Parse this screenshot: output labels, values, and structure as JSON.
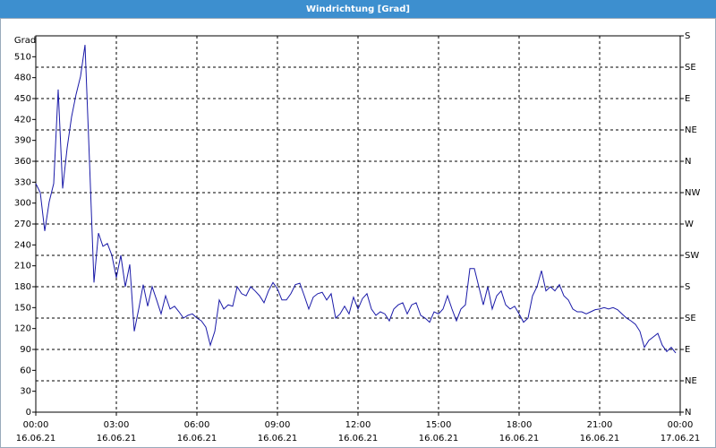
{
  "chart_data": {
    "type": "line",
    "title": "Windrichtung [Grad]",
    "ylabel": "Grad",
    "x": [
      0,
      10,
      20,
      30,
      40,
      50,
      60,
      70,
      80,
      90,
      100,
      110,
      120,
      130,
      140,
      150,
      160,
      170,
      180,
      190,
      200,
      210,
      220,
      230,
      240,
      250,
      260,
      270,
      280,
      290,
      300,
      310,
      320,
      330,
      340,
      350,
      360,
      370,
      380,
      390,
      400,
      410,
      420,
      430,
      440,
      450,
      460,
      470,
      480,
      490,
      500,
      510,
      520,
      530,
      540,
      550,
      560,
      570,
      580,
      590,
      600,
      610,
      620,
      630,
      640,
      650,
      660,
      670,
      680,
      690,
      700,
      710,
      720,
      730,
      740,
      750,
      760,
      770,
      780,
      790,
      800,
      810,
      820,
      830,
      840,
      850,
      860,
      870,
      880,
      890,
      900,
      910,
      920,
      930,
      940,
      950,
      960,
      970,
      980,
      990,
      1000,
      1010,
      1020,
      1030,
      1040,
      1050,
      1060,
      1070,
      1080,
      1090,
      1100,
      1110,
      1120,
      1130,
      1140,
      1150,
      1160,
      1170,
      1180,
      1190,
      1200,
      1210,
      1220,
      1230,
      1240,
      1250,
      1260,
      1270,
      1280,
      1290,
      1300,
      1310,
      1320,
      1330,
      1340,
      1350,
      1360,
      1370,
      1380,
      1390,
      1400,
      1410,
      1420,
      1430
    ],
    "series": [
      {
        "name": "Windrichtung",
        "color": "#1a1aa8",
        "values": [
          328,
          315,
          260,
          302,
          328,
          463,
          321,
          379,
          424,
          456,
          482,
          527,
          360,
          186,
          257,
          238,
          242,
          225,
          193,
          225,
          180,
          212,
          116,
          148,
          183,
          152,
          180,
          161,
          141,
          167,
          148,
          152,
          144,
          135,
          139,
          141,
          135,
          131,
          122,
          96,
          116,
          161,
          148,
          154,
          152,
          180,
          170,
          167,
          180,
          174,
          167,
          157,
          174,
          186,
          177,
          161,
          161,
          170,
          183,
          185,
          167,
          148,
          165,
          170,
          172,
          161,
          170,
          135,
          141,
          152,
          141,
          165,
          148,
          163,
          170,
          148,
          139,
          144,
          141,
          131,
          148,
          154,
          157,
          141,
          154,
          157,
          139,
          135,
          129,
          144,
          141,
          148,
          167,
          148,
          131,
          148,
          154,
          206,
          206,
          180,
          154,
          180,
          148,
          167,
          174,
          154,
          148,
          152,
          141,
          129,
          135,
          167,
          180,
          203,
          174,
          180,
          174,
          183,
          167,
          161,
          148,
          144,
          144,
          141,
          144,
          147,
          148,
          150,
          148,
          150,
          147,
          141,
          135,
          131,
          126,
          116,
          93,
          103,
          108,
          113,
          96,
          87,
          93,
          85
        ]
      }
    ],
    "xlim": [
      0,
      1440
    ],
    "xticks": [
      {
        "value": 0,
        "label": "00:00"
      },
      {
        "value": 180,
        "label": "03:00"
      },
      {
        "value": 360,
        "label": "06:00"
      },
      {
        "value": 540,
        "label": "09:00"
      },
      {
        "value": 720,
        "label": "12:00"
      },
      {
        "value": 900,
        "label": "15:00"
      },
      {
        "value": 1080,
        "label": "18:00"
      },
      {
        "value": 1260,
        "label": "21:00"
      },
      {
        "value": 1440,
        "label": "00:00"
      }
    ],
    "xtick_dates": [
      "16.06.21",
      "16.06.21",
      "16.06.21",
      "16.06.21",
      "16.06.21",
      "16.06.21",
      "16.06.21",
      "16.06.21",
      "17.06.21"
    ],
    "ylim": [
      0,
      540
    ],
    "yticks": [
      0,
      30,
      60,
      90,
      120,
      150,
      180,
      210,
      240,
      270,
      300,
      330,
      360,
      390,
      420,
      450,
      480,
      510
    ],
    "y2lim": [
      0,
      540
    ],
    "y2ticks": [
      {
        "value": 0,
        "label": "N"
      },
      {
        "value": 45,
        "label": "NE"
      },
      {
        "value": 90,
        "label": "E"
      },
      {
        "value": 135,
        "label": "SE"
      },
      {
        "value": 180,
        "label": "S"
      },
      {
        "value": 225,
        "label": "SW"
      },
      {
        "value": 270,
        "label": "W"
      },
      {
        "value": 315,
        "label": "NW"
      },
      {
        "value": 360,
        "label": "N"
      },
      {
        "value": 405,
        "label": "NE"
      },
      {
        "value": 450,
        "label": "E"
      },
      {
        "value": 495,
        "label": "SE"
      },
      {
        "value": 540,
        "label": "S"
      }
    ],
    "grid": true
  }
}
